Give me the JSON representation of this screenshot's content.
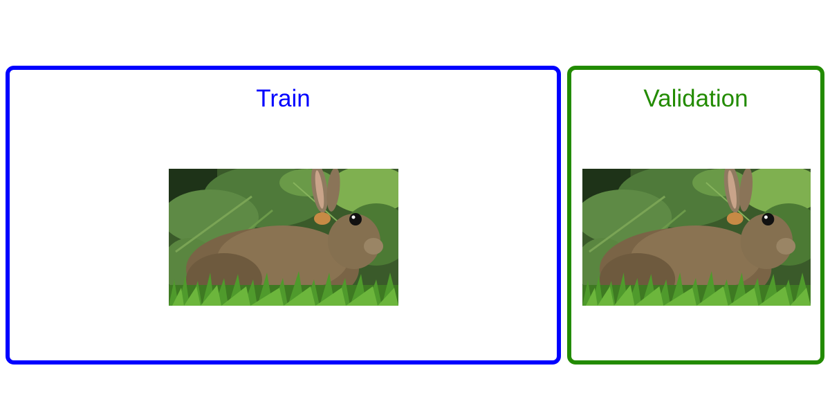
{
  "panels": {
    "train": {
      "title": "Train",
      "color": "#0000ff"
    },
    "validation": {
      "title": "Validation",
      "color": "#228b00"
    }
  },
  "images": {
    "train_subject": "rabbit-photo",
    "validation_subject": "rabbit-photo"
  }
}
